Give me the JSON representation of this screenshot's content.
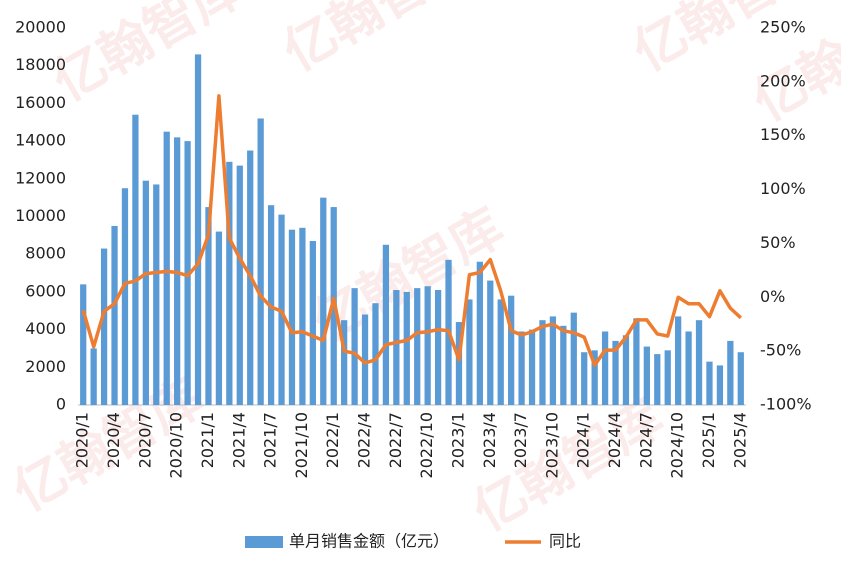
{
  "chart_data": {
    "type": "bar_line",
    "watermark": "亿翰智库",
    "categories": [
      "2020/1",
      null,
      null,
      "2020/4",
      null,
      null,
      "2020/7",
      null,
      null,
      "2020/10",
      null,
      null,
      "2021/1",
      null,
      null,
      "2021/4",
      null,
      null,
      "2021/7",
      null,
      null,
      "2021/10",
      null,
      null,
      "2022/1",
      null,
      null,
      "2022/4",
      null,
      null,
      "2022/7",
      null,
      null,
      "2022/10",
      null,
      null,
      "2023/1",
      null,
      null,
      "2023/4",
      null,
      null,
      "2023/7",
      null,
      null,
      "2023/10",
      null,
      null,
      "2024/1",
      null,
      null,
      "2024/4",
      null,
      null,
      "2024/7",
      null,
      null,
      "2024/10",
      null,
      null,
      "2025/1",
      null,
      null,
      "2025/4"
    ],
    "series": [
      {
        "name": "单月销售金额（亿元）",
        "kind": "bar",
        "color": "#5b9bd5",
        "values": [
          6400,
          3000,
          8300,
          9500,
          11500,
          15400,
          11900,
          11700,
          14500,
          14200,
          14000,
          18600,
          10500,
          9200,
          12900,
          12700,
          13500,
          15200,
          10600,
          10100,
          9300,
          9400,
          8700,
          11000,
          10500,
          4500,
          6200,
          4800,
          5400,
          8500,
          6100,
          6000,
          6200,
          6300,
          6100,
          7700,
          4400,
          5600,
          7600,
          6600,
          5600,
          5800,
          3900,
          4000,
          4500,
          4700,
          4200,
          4900,
          2800,
          2900,
          3900,
          3400,
          3700,
          4600,
          3100,
          2700,
          2900,
          4700,
          3900,
          4500,
          2300,
          2100,
          3400,
          2800
        ]
      },
      {
        "name": "同比",
        "kind": "line",
        "axis": "y2",
        "color": "#ed7d31",
        "values": [
          -12,
          -46,
          -13,
          -6,
          13,
          15,
          22,
          23,
          24,
          23,
          20,
          31,
          58,
          187,
          55,
          36,
          20,
          1,
          -9,
          -13,
          -33,
          -32,
          -36,
          -40,
          -1,
          -50,
          -52,
          -61,
          -58,
          -44,
          -42,
          -40,
          -33,
          -32,
          -30,
          -31,
          -58,
          21,
          23,
          35,
          6,
          -31,
          -35,
          -32,
          -27,
          -25,
          -31,
          -33,
          -37,
          -63,
          -49,
          -49,
          -37,
          -21,
          -21,
          -34,
          -36,
          0,
          -6,
          -6,
          -18,
          6,
          -10,
          -19
        ]
      }
    ],
    "ylim": [
      0,
      20000
    ],
    "yticks": [
      0,
      2000,
      4000,
      6000,
      8000,
      10000,
      12000,
      14000,
      16000,
      18000,
      20000
    ],
    "y2lim": [
      -100,
      250
    ],
    "y2ticks": [
      {
        "value": -100,
        "label": "-100%"
      },
      {
        "value": -50,
        "label": "-50%"
      },
      {
        "value": 0,
        "label": "0%"
      },
      {
        "value": 50,
        "label": "50%"
      },
      {
        "value": 100,
        "label": "100%"
      },
      {
        "value": 150,
        "label": "150%"
      },
      {
        "value": 200,
        "label": "200%"
      },
      {
        "value": 250,
        "label": "250%"
      }
    ],
    "legend": "bottom"
  }
}
